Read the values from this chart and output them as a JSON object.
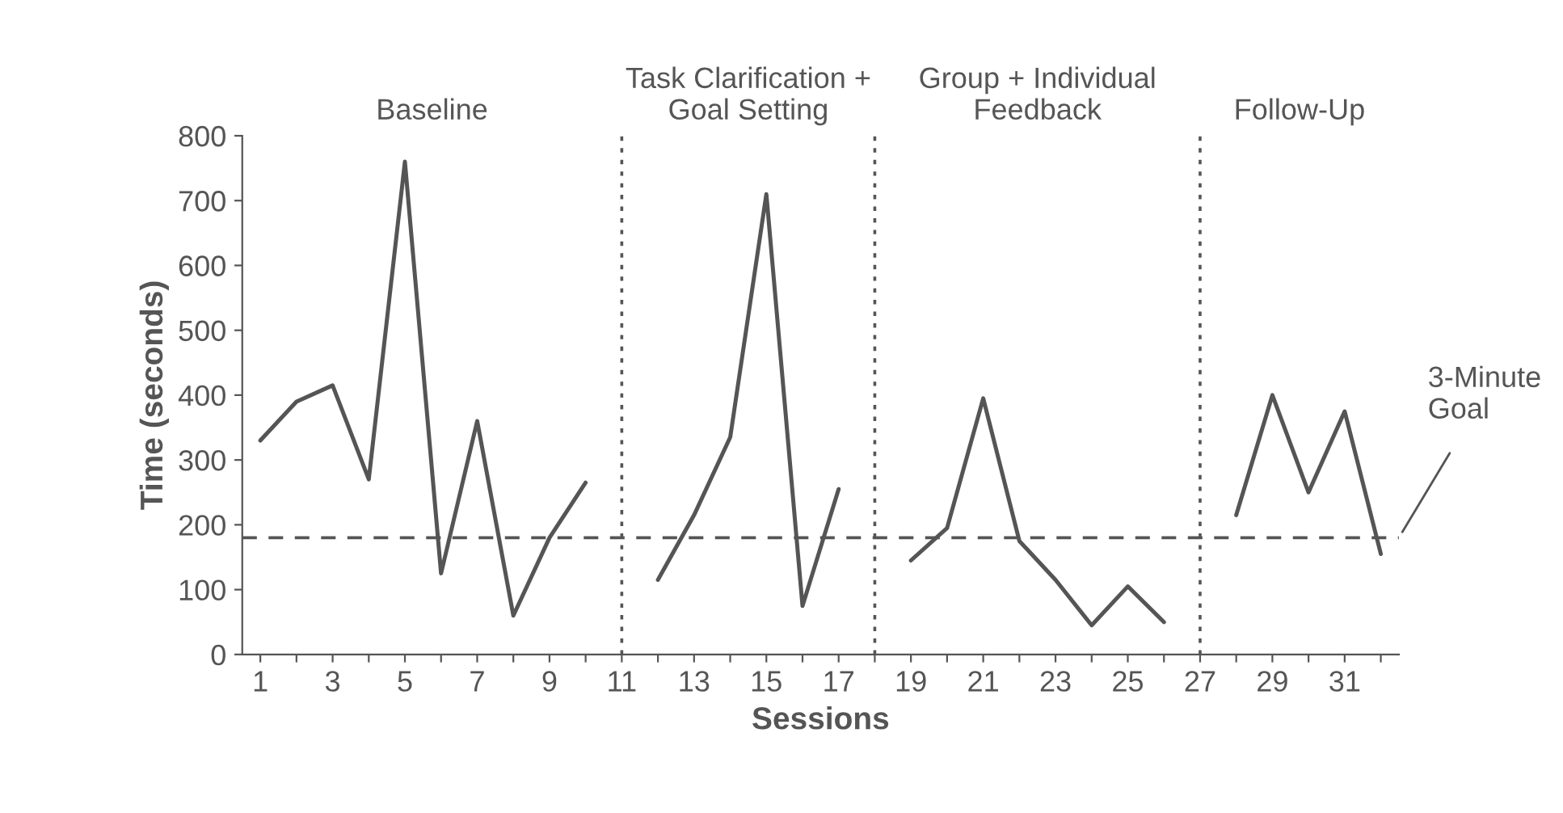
{
  "chart_data": {
    "type": "line",
    "xlabel": "Sessions",
    "ylabel": "Time (seconds)",
    "x": [
      1,
      2,
      3,
      4,
      5,
      6,
      7,
      8,
      9,
      10,
      11,
      12,
      13,
      14,
      15,
      16,
      17,
      18,
      19,
      20,
      21,
      22,
      23,
      24,
      25,
      26,
      27,
      28,
      29,
      30,
      31,
      32
    ],
    "series": [
      {
        "color": "#555555",
        "values": [
          330,
          390,
          415,
          270,
          760,
          125,
          360,
          60,
          180,
          265,
          null,
          115,
          215,
          335,
          710,
          75,
          255,
          null,
          145,
          195,
          395,
          175,
          115,
          45,
          105,
          50,
          null,
          215,
          400,
          250,
          375,
          155
        ]
      }
    ],
    "xlim": [
      0.5,
      32.5
    ],
    "ylim": [
      0,
      800
    ],
    "xticks": [
      1,
      {
        "value": 2,
        "label": null
      },
      3,
      {
        "value": 4,
        "label": null
      },
      5,
      {
        "value": 6,
        "label": null
      },
      7,
      {
        "value": 8,
        "label": null
      },
      9,
      {
        "value": 10,
        "label": null
      },
      11,
      {
        "value": 12,
        "label": null
      },
      13,
      {
        "value": 14,
        "label": null
      },
      15,
      {
        "value": 16,
        "label": null
      },
      17,
      {
        "value": 18,
        "label": null
      },
      19,
      {
        "value": 20,
        "label": null
      },
      21,
      {
        "value": 22,
        "label": null
      },
      23,
      {
        "value": 24,
        "label": null
      },
      25,
      {
        "value": 26,
        "label": null
      },
      27,
      {
        "value": 28,
        "label": null
      },
      29,
      {
        "value": 30,
        "label": null
      },
      31,
      {
        "value": 32,
        "label": null
      }
    ],
    "yticks": [
      0,
      100,
      200,
      300,
      400,
      500,
      600,
      700,
      800
    ],
    "ref_lines": [
      {
        "axis": "x",
        "value": 11,
        "line_style": "dotted"
      },
      {
        "axis": "x",
        "value": 18,
        "line_style": "dotted"
      },
      {
        "axis": "x",
        "value": 27,
        "line_style": "dotted"
      },
      {
        "axis": "y",
        "value": 180,
        "line_style": "dashed",
        "label": "3-Minute\nGoal"
      }
    ],
    "annotations": [
      "Baseline",
      "Task Clarification +\nGoal Setting",
      "Group + Individual\nFeedback",
      "Follow-Up"
    ],
    "grid": false,
    "legend": false,
    "marker": "none",
    "line_style": "solid"
  }
}
